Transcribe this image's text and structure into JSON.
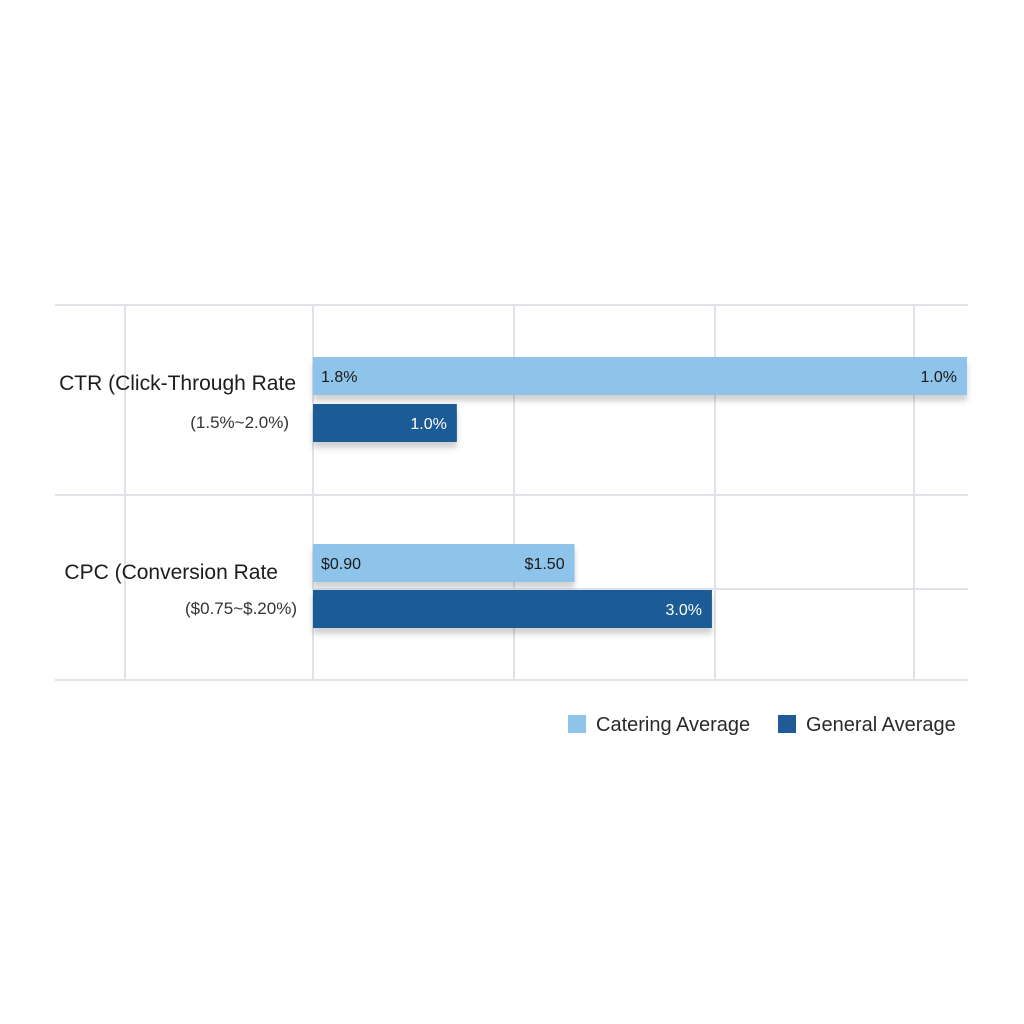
{
  "chart_data": {
    "type": "bar",
    "orientation": "horizontal",
    "categories": [
      {
        "title": "CTR (Click-Through Rate",
        "subtitle": "(1.5%~2.0%)",
        "bars": [
          {
            "series": "Catering Average",
            "value": 1.0,
            "labels": [
              "1.8%",
              "1.0%"
            ]
          },
          {
            "series": "General Average",
            "value": 0.22,
            "labels": [
              "1.0%"
            ]
          }
        ]
      },
      {
        "title": "CPC (Conversion Rate",
        "subtitle": "($0.75~$.20%)",
        "bars": [
          {
            "series": "Catering Average",
            "value": 0.4,
            "labels": [
              "$0.90",
              "$1.50"
            ]
          },
          {
            "series": "General Average",
            "value": 0.61,
            "labels": [
              "3.0%"
            ]
          }
        ]
      }
    ],
    "series": [
      {
        "name": "Catering Average",
        "color": "#8ec3ea"
      },
      {
        "name": "General Average",
        "color": "#1f5b96"
      }
    ],
    "xlim": [
      0,
      1
    ],
    "grid": true,
    "legend": "bottom-right",
    "title": "",
    "xlabel": "",
    "ylabel": ""
  }
}
